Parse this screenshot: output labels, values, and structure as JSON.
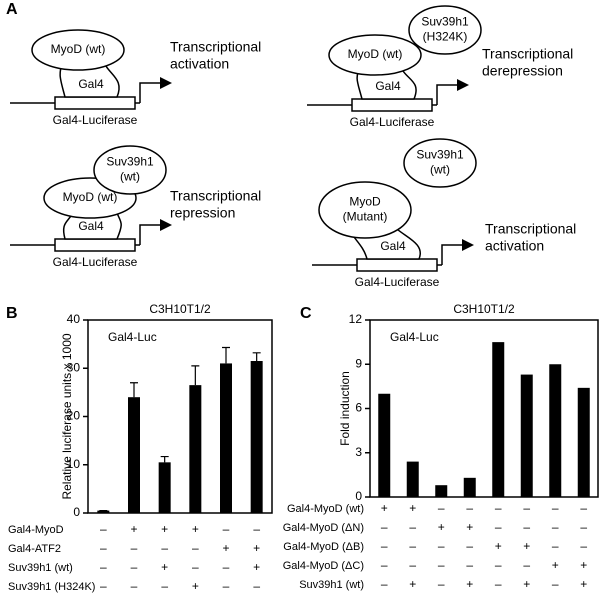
{
  "diagram_panel": {
    "label": "A",
    "diagrams": [
      {
        "partner": null,
        "protein": [
          "MyoD (wt)"
        ],
        "dbd": "Gal4",
        "reporter": "Gal4-Luciferase",
        "outcome": [
          "Transcriptional",
          "activation"
        ]
      },
      {
        "partner": [
          "Suv39h1",
          "(H324K)"
        ],
        "protein": [
          "MyoD (wt)"
        ],
        "dbd": "Gal4",
        "reporter": "Gal4-Luciferase",
        "outcome": [
          "Transcriptional",
          "derepression"
        ]
      },
      {
        "partner": [
          "Suv39h1",
          "(wt)"
        ],
        "protein": [
          "MyoD (wt)"
        ],
        "dbd": "Gal4",
        "reporter": "Gal4-Luciferase",
        "outcome": [
          "Transcriptional",
          "repression"
        ]
      },
      {
        "partner": [
          "Suv39h1",
          "(wt)"
        ],
        "protein": [
          "MyoD",
          "(Mutant)"
        ],
        "dbd": "Gal4",
        "reporter": "Gal4-Luciferase",
        "outcome": [
          "Transcriptional",
          "activation"
        ]
      }
    ]
  },
  "chart_data": [
    {
      "type": "bar",
      "panel_label": "B",
      "title": "C3H10T1/2",
      "y_label": "Relative luciferase units x 1000",
      "annotation": "Gal4-Luc",
      "ylim": [
        0,
        40
      ],
      "yticks": [
        0,
        10,
        20,
        30,
        40
      ],
      "color": "#000000",
      "values": [
        0.5,
        24,
        10.5,
        26.5,
        31,
        31.5
      ],
      "errors": [
        0,
        3,
        1.2,
        4,
        3.3,
        1.7
      ],
      "conditions": [
        {
          "name": "Gal4-MyoD",
          "signs": [
            "–",
            "+",
            "+",
            "+",
            "–",
            "–"
          ]
        },
        {
          "name": "Gal4-ATF2",
          "signs": [
            "–",
            "–",
            "–",
            "–",
            "+",
            "+"
          ]
        },
        {
          "name": "Suv39h1 (wt)",
          "signs": [
            "–",
            "–",
            "+",
            "–",
            "–",
            "+"
          ]
        },
        {
          "name": "Suv39h1 (H324K)",
          "signs": [
            "–",
            "–",
            "–",
            "+",
            "–",
            "–"
          ]
        }
      ]
    },
    {
      "type": "bar",
      "panel_label": "C",
      "title": "C3H10T1/2",
      "y_label": "Fold induction",
      "annotation": "Gal4-Luc",
      "ylim": [
        0,
        12
      ],
      "yticks": [
        0,
        3,
        6,
        9,
        12
      ],
      "color": "#000000",
      "values": [
        7,
        2.4,
        0.8,
        1.3,
        10.5,
        8.3,
        9,
        7.4
      ],
      "conditions": [
        {
          "name": "Gal4-MyoD (wt)",
          "signs": [
            "+",
            "+",
            "–",
            "–",
            "–",
            "–",
            "–",
            "–"
          ]
        },
        {
          "name": "Gal4-MyoD (ΔN)",
          "signs": [
            "–",
            "–",
            "+",
            "+",
            "–",
            "–",
            "–",
            "–"
          ]
        },
        {
          "name": "Gal4-MyoD (ΔB)",
          "signs": [
            "–",
            "–",
            "–",
            "–",
            "+",
            "+",
            "–",
            "–"
          ]
        },
        {
          "name": "Gal4-MyoD (ΔC)",
          "signs": [
            "–",
            "–",
            "–",
            "–",
            "–",
            "–",
            "+",
            "+"
          ]
        },
        {
          "name": "Suv39h1 (wt)",
          "signs": [
            "–",
            "+",
            "–",
            "+",
            "–",
            "+",
            "–",
            "+"
          ]
        }
      ]
    }
  ]
}
